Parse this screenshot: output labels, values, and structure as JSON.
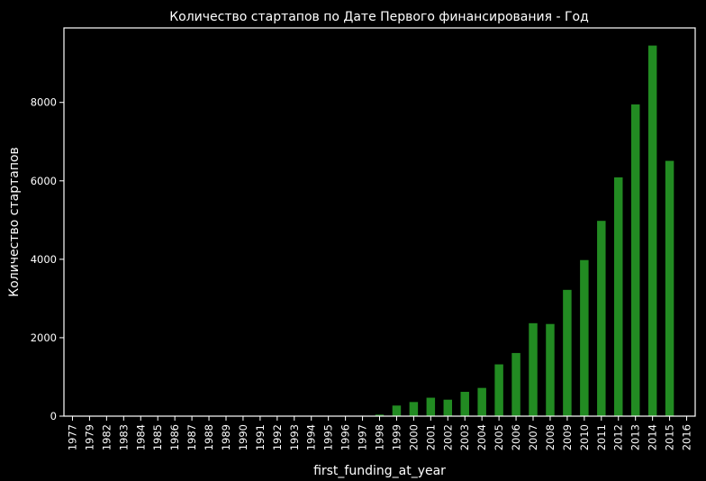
{
  "chart_data": {
    "type": "bar",
    "title": "Количество стартапов по Дате Первого финансирования - Год",
    "xlabel": "first_funding_at_year",
    "ylabel": "Количество стартапов",
    "categories": [
      "1977",
      "1979",
      "1982",
      "1983",
      "1984",
      "1985",
      "1986",
      "1987",
      "1988",
      "1989",
      "1990",
      "1991",
      "1992",
      "1993",
      "1994",
      "1995",
      "1996",
      "1997",
      "1998",
      "1999",
      "2000",
      "2001",
      "2002",
      "2003",
      "2004",
      "2005",
      "2006",
      "2007",
      "2008",
      "2009",
      "2010",
      "2011",
      "2012",
      "2013",
      "2014",
      "2015",
      "2016"
    ],
    "values": [
      1,
      1,
      1,
      1,
      1,
      1,
      1,
      1,
      1,
      1,
      1,
      2,
      2,
      2,
      3,
      5,
      8,
      12,
      40,
      270,
      360,
      470,
      420,
      620,
      720,
      1320,
      1610,
      2370,
      2350,
      3220,
      3980,
      4980,
      6090,
      7950,
      9450,
      6510,
      10
    ],
    "ylim": [
      0,
      9900
    ],
    "yticks": [
      0,
      2000,
      4000,
      6000,
      8000
    ],
    "bar_color": "#228B22",
    "background": "#000000",
    "grid": false
  }
}
